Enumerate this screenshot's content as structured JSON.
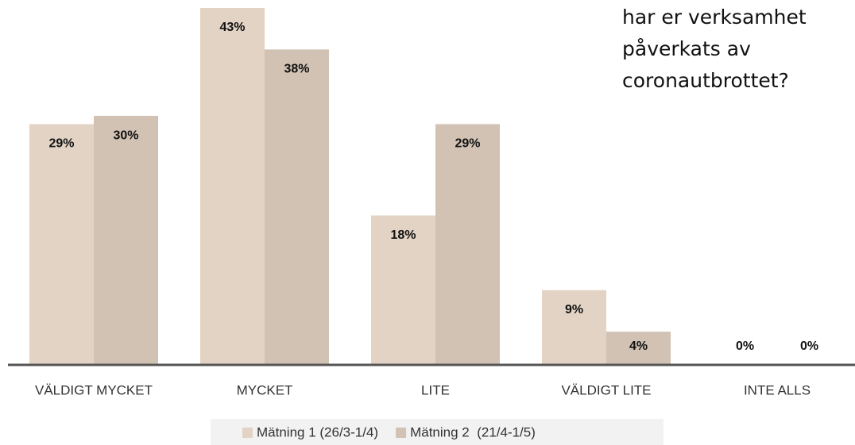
{
  "chart_data": {
    "type": "bar",
    "title": "har er verksamhet påverkats av coronautbrottet?",
    "categories": [
      "VÄLDIGT MYCKET",
      "MYCKET",
      "LITE",
      "VÄLDIGT LITE",
      "INTE ALLS"
    ],
    "series": [
      {
        "name": "Mätning 1 (26/3-1/4)",
        "color": "#e2d3c5",
        "values": [
          29,
          43,
          18,
          9,
          0
        ],
        "value_labels": [
          "29%",
          "43%",
          "18%",
          "9%",
          "0%"
        ]
      },
      {
        "name": "Mätning 2  (21/4-1/5)",
        "color": "#d1c2b4",
        "values": [
          30,
          38,
          29,
          4,
          0
        ],
        "value_labels": [
          "30%",
          "38%",
          "29%",
          "4%",
          "0%"
        ]
      }
    ],
    "legend": "bottom"
  }
}
